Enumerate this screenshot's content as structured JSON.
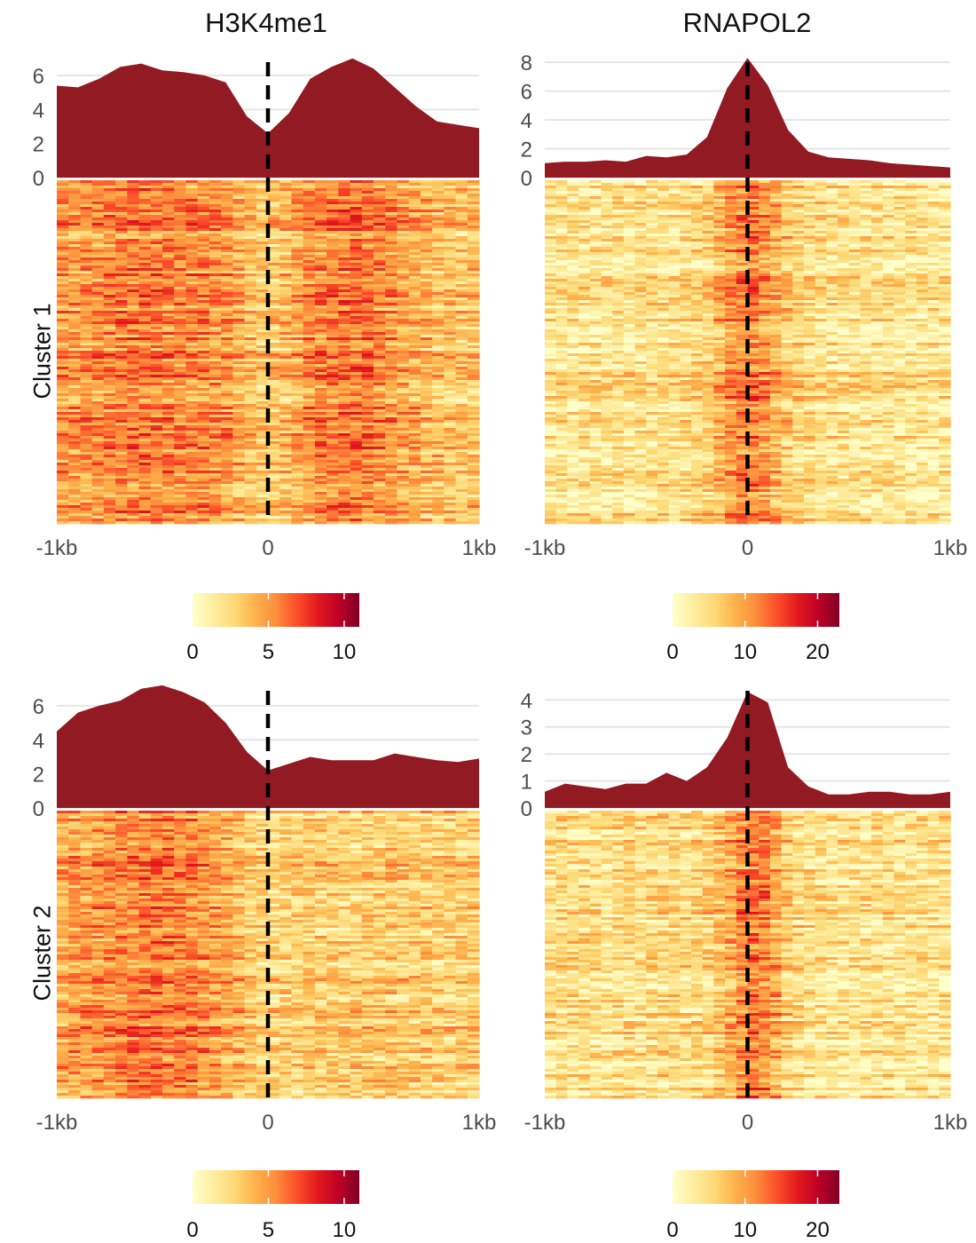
{
  "column_titles": [
    "H3K4me1",
    "RNAPOL2"
  ],
  "row_labels": [
    "Cluster 1",
    "Cluster 2"
  ],
  "chart_data": [
    {
      "type": "area",
      "mark": "profile-plus-heatmap",
      "title": "H3K4me1",
      "row_label": "Cluster 1",
      "x_tick_labels": [
        "-1kb",
        "0",
        "1kb"
      ],
      "x_range": [
        -1000,
        1000
      ],
      "profile": {
        "ylim": [
          0,
          7.2
        ],
        "y_ticks": [
          0,
          2,
          4,
          6
        ],
        "x": [
          -1000,
          -900,
          -800,
          -700,
          -600,
          -500,
          -400,
          -300,
          -200,
          -100,
          0,
          100,
          200,
          300,
          400,
          500,
          600,
          700,
          800,
          900,
          1000
        ],
        "values": [
          5.4,
          5.3,
          5.8,
          6.5,
          6.7,
          6.3,
          6.2,
          6.0,
          5.6,
          3.6,
          2.6,
          3.8,
          5.8,
          6.5,
          7.0,
          6.4,
          5.3,
          4.2,
          3.3,
          3.1,
          2.9
        ]
      },
      "heatmap": {
        "color_scale": [
          "#ffffcc",
          "#ffeda0",
          "#fed976",
          "#feb24c",
          "#fd8d3c",
          "#fc4e2a",
          "#e31a1c",
          "#bd0026",
          "#800026"
        ],
        "legend_ticks": [
          {
            "value": 0,
            "label": "0"
          },
          {
            "value": 5,
            "label": "5"
          },
          {
            "value": 10,
            "label": "10"
          }
        ],
        "legend_max": 11
      }
    },
    {
      "type": "area",
      "mark": "profile-plus-heatmap",
      "title": "RNAPOL2",
      "row_label": "Cluster 1",
      "x_tick_labels": [
        "-1kb",
        "0",
        "1kb"
      ],
      "x_range": [
        -1000,
        1000
      ],
      "profile": {
        "ylim": [
          0,
          8.5
        ],
        "y_ticks": [
          0,
          2,
          4,
          6,
          8
        ],
        "x": [
          -1000,
          -900,
          -800,
          -700,
          -600,
          -500,
          -400,
          -300,
          -200,
          -100,
          0,
          100,
          200,
          300,
          400,
          500,
          600,
          700,
          800,
          900,
          1000
        ],
        "values": [
          1.0,
          1.1,
          1.1,
          1.2,
          1.1,
          1.5,
          1.4,
          1.6,
          2.8,
          6.2,
          8.3,
          6.4,
          3.3,
          1.8,
          1.4,
          1.3,
          1.2,
          1.0,
          0.9,
          0.8,
          0.7
        ]
      },
      "heatmap": {
        "color_scale": [
          "#ffffcc",
          "#ffeda0",
          "#fed976",
          "#feb24c",
          "#fd8d3c",
          "#fc4e2a",
          "#e31a1c",
          "#bd0026",
          "#800026"
        ],
        "legend_ticks": [
          {
            "value": 0,
            "label": "0"
          },
          {
            "value": 10,
            "label": "10"
          },
          {
            "value": 20,
            "label": "20"
          }
        ],
        "legend_max": 23
      }
    },
    {
      "type": "area",
      "mark": "profile-plus-heatmap",
      "title": "H3K4me1",
      "row_label": "Cluster 2",
      "x_tick_labels": [
        "-1kb",
        "0",
        "1kb"
      ],
      "x_range": [
        -1000,
        1000
      ],
      "profile": {
        "ylim": [
          0,
          7.3
        ],
        "y_ticks": [
          0,
          2,
          4,
          6
        ],
        "x": [
          -1000,
          -900,
          -800,
          -700,
          -600,
          -500,
          -400,
          -300,
          -200,
          -100,
          0,
          100,
          200,
          300,
          400,
          500,
          600,
          700,
          800,
          900,
          1000
        ],
        "values": [
          4.5,
          5.6,
          6.0,
          6.3,
          7.0,
          7.2,
          6.8,
          6.2,
          5.0,
          3.3,
          2.2,
          2.6,
          3.0,
          2.8,
          2.8,
          2.8,
          3.2,
          3.0,
          2.8,
          2.7,
          2.9
        ]
      },
      "heatmap": {
        "color_scale": [
          "#ffffcc",
          "#ffeda0",
          "#fed976",
          "#feb24c",
          "#fd8d3c",
          "#fc4e2a",
          "#e31a1c",
          "#bd0026",
          "#800026"
        ],
        "legend_ticks": [
          {
            "value": 0,
            "label": "0"
          },
          {
            "value": 5,
            "label": "5"
          },
          {
            "value": 10,
            "label": "10"
          }
        ],
        "legend_max": 11
      }
    },
    {
      "type": "area",
      "mark": "profile-plus-heatmap",
      "title": "RNAPOL2",
      "row_label": "Cluster 2",
      "x_tick_labels": [
        "-1kb",
        "0",
        "1kb"
      ],
      "x_range": [
        -1000,
        1000
      ],
      "profile": {
        "ylim": [
          0,
          4.6
        ],
        "y_ticks": [
          0,
          1,
          2,
          3,
          4
        ],
        "x": [
          -1000,
          -900,
          -800,
          -700,
          -600,
          -500,
          -400,
          -300,
          -200,
          -100,
          0,
          100,
          200,
          300,
          400,
          500,
          600,
          700,
          800,
          900,
          1000
        ],
        "values": [
          0.6,
          0.9,
          0.8,
          0.7,
          0.9,
          0.9,
          1.3,
          1.0,
          1.5,
          2.6,
          4.3,
          3.9,
          1.5,
          0.8,
          0.5,
          0.5,
          0.6,
          0.6,
          0.5,
          0.5,
          0.6
        ]
      },
      "heatmap": {
        "color_scale": [
          "#ffffcc",
          "#ffeda0",
          "#fed976",
          "#feb24c",
          "#fd8d3c",
          "#fc4e2a",
          "#e31a1c",
          "#bd0026",
          "#800026"
        ],
        "legend_ticks": [
          {
            "value": 0,
            "label": "0"
          },
          {
            "value": 10,
            "label": "10"
          },
          {
            "value": 20,
            "label": "20"
          }
        ],
        "legend_max": 23
      }
    }
  ]
}
